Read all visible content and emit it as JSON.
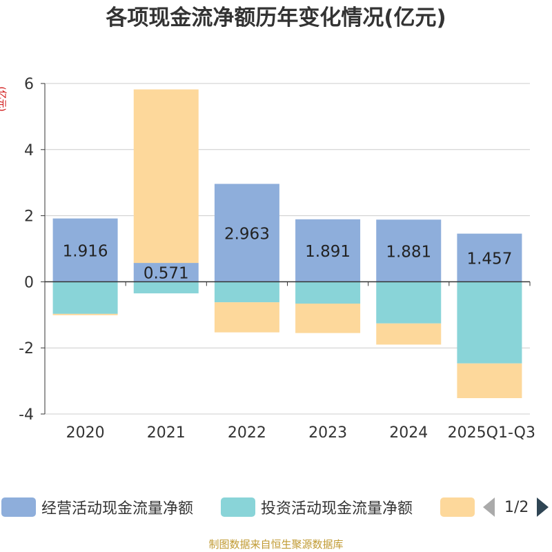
{
  "title": "各项现金流净额历年变化情况(亿元)",
  "unit_label": "(亿元)",
  "source": "制图数据来自恒生聚源数据库",
  "legend": {
    "items": [
      {
        "label": "经营活动现金流量净额",
        "color": "#8eaedb"
      },
      {
        "label": "投资活动现金流量净额",
        "color": "#89d4d8"
      },
      {
        "label": "",
        "color": "#fdd89b"
      }
    ],
    "page": "1/2"
  },
  "chart_data": {
    "type": "bar",
    "stacked": true,
    "title": "各项现金流净额历年变化情况(亿元)",
    "ylabel": "(亿元)",
    "xlabel": "",
    "categories": [
      "2020",
      "2021",
      "2022",
      "2023",
      "2024",
      "2025Q1-Q3"
    ],
    "ylim": [
      -4,
      6
    ],
    "yticks": [
      6,
      4,
      2,
      0,
      -2,
      -4
    ],
    "grid": true,
    "series": [
      {
        "name": "经营活动现金流量净额",
        "color": "#8eaedb",
        "values": [
          1.916,
          0.571,
          2.963,
          1.891,
          1.881,
          1.457
        ],
        "labels": [
          "1.916",
          "0.571",
          "2.963",
          "1.891",
          "1.881",
          "1.457"
        ]
      },
      {
        "name": "投资活动现金流量净额",
        "color": "#89d4d8",
        "values": [
          -0.97,
          -0.35,
          -0.62,
          -0.66,
          -1.26,
          -2.47
        ]
      },
      {
        "name": "",
        "color": "#fdd89b",
        "values": [
          -0.04,
          5.25,
          -0.91,
          -0.89,
          -0.64,
          -1.05
        ]
      }
    ]
  }
}
